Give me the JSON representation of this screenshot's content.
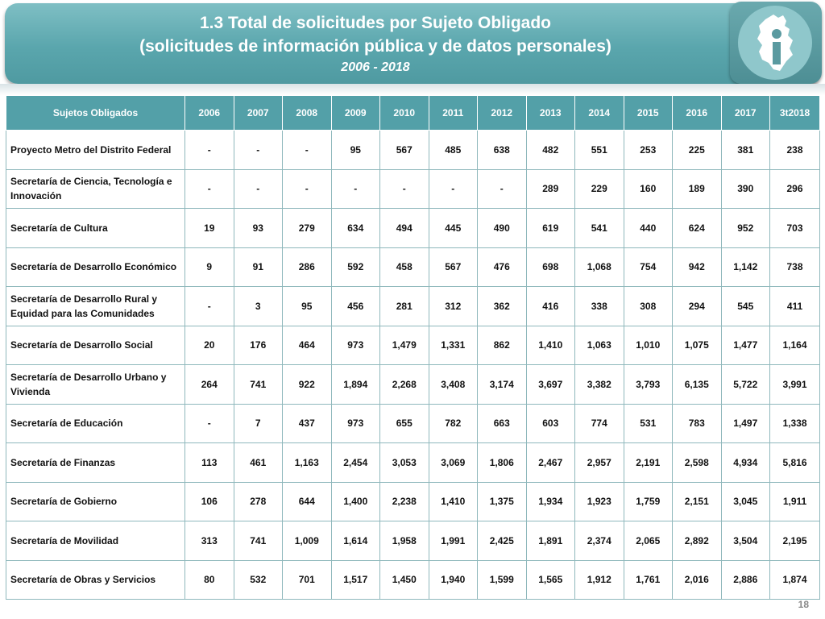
{
  "header": {
    "title_line1": "1.3 Total de solicitudes por Sujeto Obligado",
    "title_line2": "(solicitudes de información pública y de datos personales)",
    "subtitle": "2006 - 2018"
  },
  "table": {
    "columns": [
      "Sujetos Obligados",
      "2006",
      "2007",
      "2008",
      "2009",
      "2010",
      "2011",
      "2012",
      "2013",
      "2014",
      "2015",
      "2016",
      "2017",
      "3t2018"
    ],
    "rows": [
      {
        "name": "Proyecto Metro del Distrito Federal",
        "values": [
          "-",
          "-",
          "-",
          "95",
          "567",
          "485",
          "638",
          "482",
          "551",
          "253",
          "225",
          "381",
          "238"
        ]
      },
      {
        "name": "Secretaría de Ciencia, Tecnología e Innovación",
        "values": [
          "-",
          "-",
          "-",
          "-",
          "-",
          "-",
          "-",
          "289",
          "229",
          "160",
          "189",
          "390",
          "296"
        ]
      },
      {
        "name": "Secretaría de Cultura",
        "values": [
          "19",
          "93",
          "279",
          "634",
          "494",
          "445",
          "490",
          "619",
          "541",
          "440",
          "624",
          "952",
          "703"
        ]
      },
      {
        "name": "Secretaría de Desarrollo Económico",
        "values": [
          "9",
          "91",
          "286",
          "592",
          "458",
          "567",
          "476",
          "698",
          "1,068",
          "754",
          "942",
          "1,142",
          "738"
        ]
      },
      {
        "name": "Secretaría de Desarrollo Rural y Equidad para las Comunidades",
        "values": [
          "-",
          "3",
          "95",
          "456",
          "281",
          "312",
          "362",
          "416",
          "338",
          "308",
          "294",
          "545",
          "411"
        ]
      },
      {
        "name": "Secretaría de Desarrollo Social",
        "values": [
          "20",
          "176",
          "464",
          "973",
          "1,479",
          "1,331",
          "862",
          "1,410",
          "1,063",
          "1,010",
          "1,075",
          "1,477",
          "1,164"
        ]
      },
      {
        "name": "Secretaría de Desarrollo Urbano y Vivienda",
        "values": [
          "264",
          "741",
          "922",
          "1,894",
          "2,268",
          "3,408",
          "3,174",
          "3,697",
          "3,382",
          "3,793",
          "6,135",
          "5,722",
          "3,991"
        ]
      },
      {
        "name": "Secretaría de Educación",
        "values": [
          "-",
          "7",
          "437",
          "973",
          "655",
          "782",
          "663",
          "603",
          "774",
          "531",
          "783",
          "1,497",
          "1,338"
        ]
      },
      {
        "name": "Secretaría de Finanzas",
        "values": [
          "113",
          "461",
          "1,163",
          "2,454",
          "3,053",
          "3,069",
          "1,806",
          "2,467",
          "2,957",
          "2,191",
          "2,598",
          "4,934",
          "5,816"
        ]
      },
      {
        "name": "Secretaría de Gobierno",
        "values": [
          "106",
          "278",
          "644",
          "1,400",
          "2,238",
          "1,410",
          "1,375",
          "1,934",
          "1,923",
          "1,759",
          "2,151",
          "3,045",
          "1,911"
        ]
      },
      {
        "name": "Secretaría de Movilidad",
        "values": [
          "313",
          "741",
          "1,009",
          "1,614",
          "1,958",
          "1,991",
          "2,425",
          "1,891",
          "2,374",
          "2,065",
          "2,892",
          "3,504",
          "2,195"
        ]
      },
      {
        "name": "Secretaría de Obras y Servicios",
        "values": [
          "80",
          "532",
          "701",
          "1,517",
          "1,450",
          "1,940",
          "1,599",
          "1,565",
          "1,912",
          "1,761",
          "2,016",
          "2,886",
          "1,874"
        ]
      }
    ]
  },
  "footer": {
    "page_number": "18"
  },
  "logo": {
    "icon": "cdmx-map-info-logo-icon"
  },
  "colors": {
    "header": "#5aa6ad",
    "table_header": "#53a0a8",
    "grid": "#8fb8bc"
  }
}
